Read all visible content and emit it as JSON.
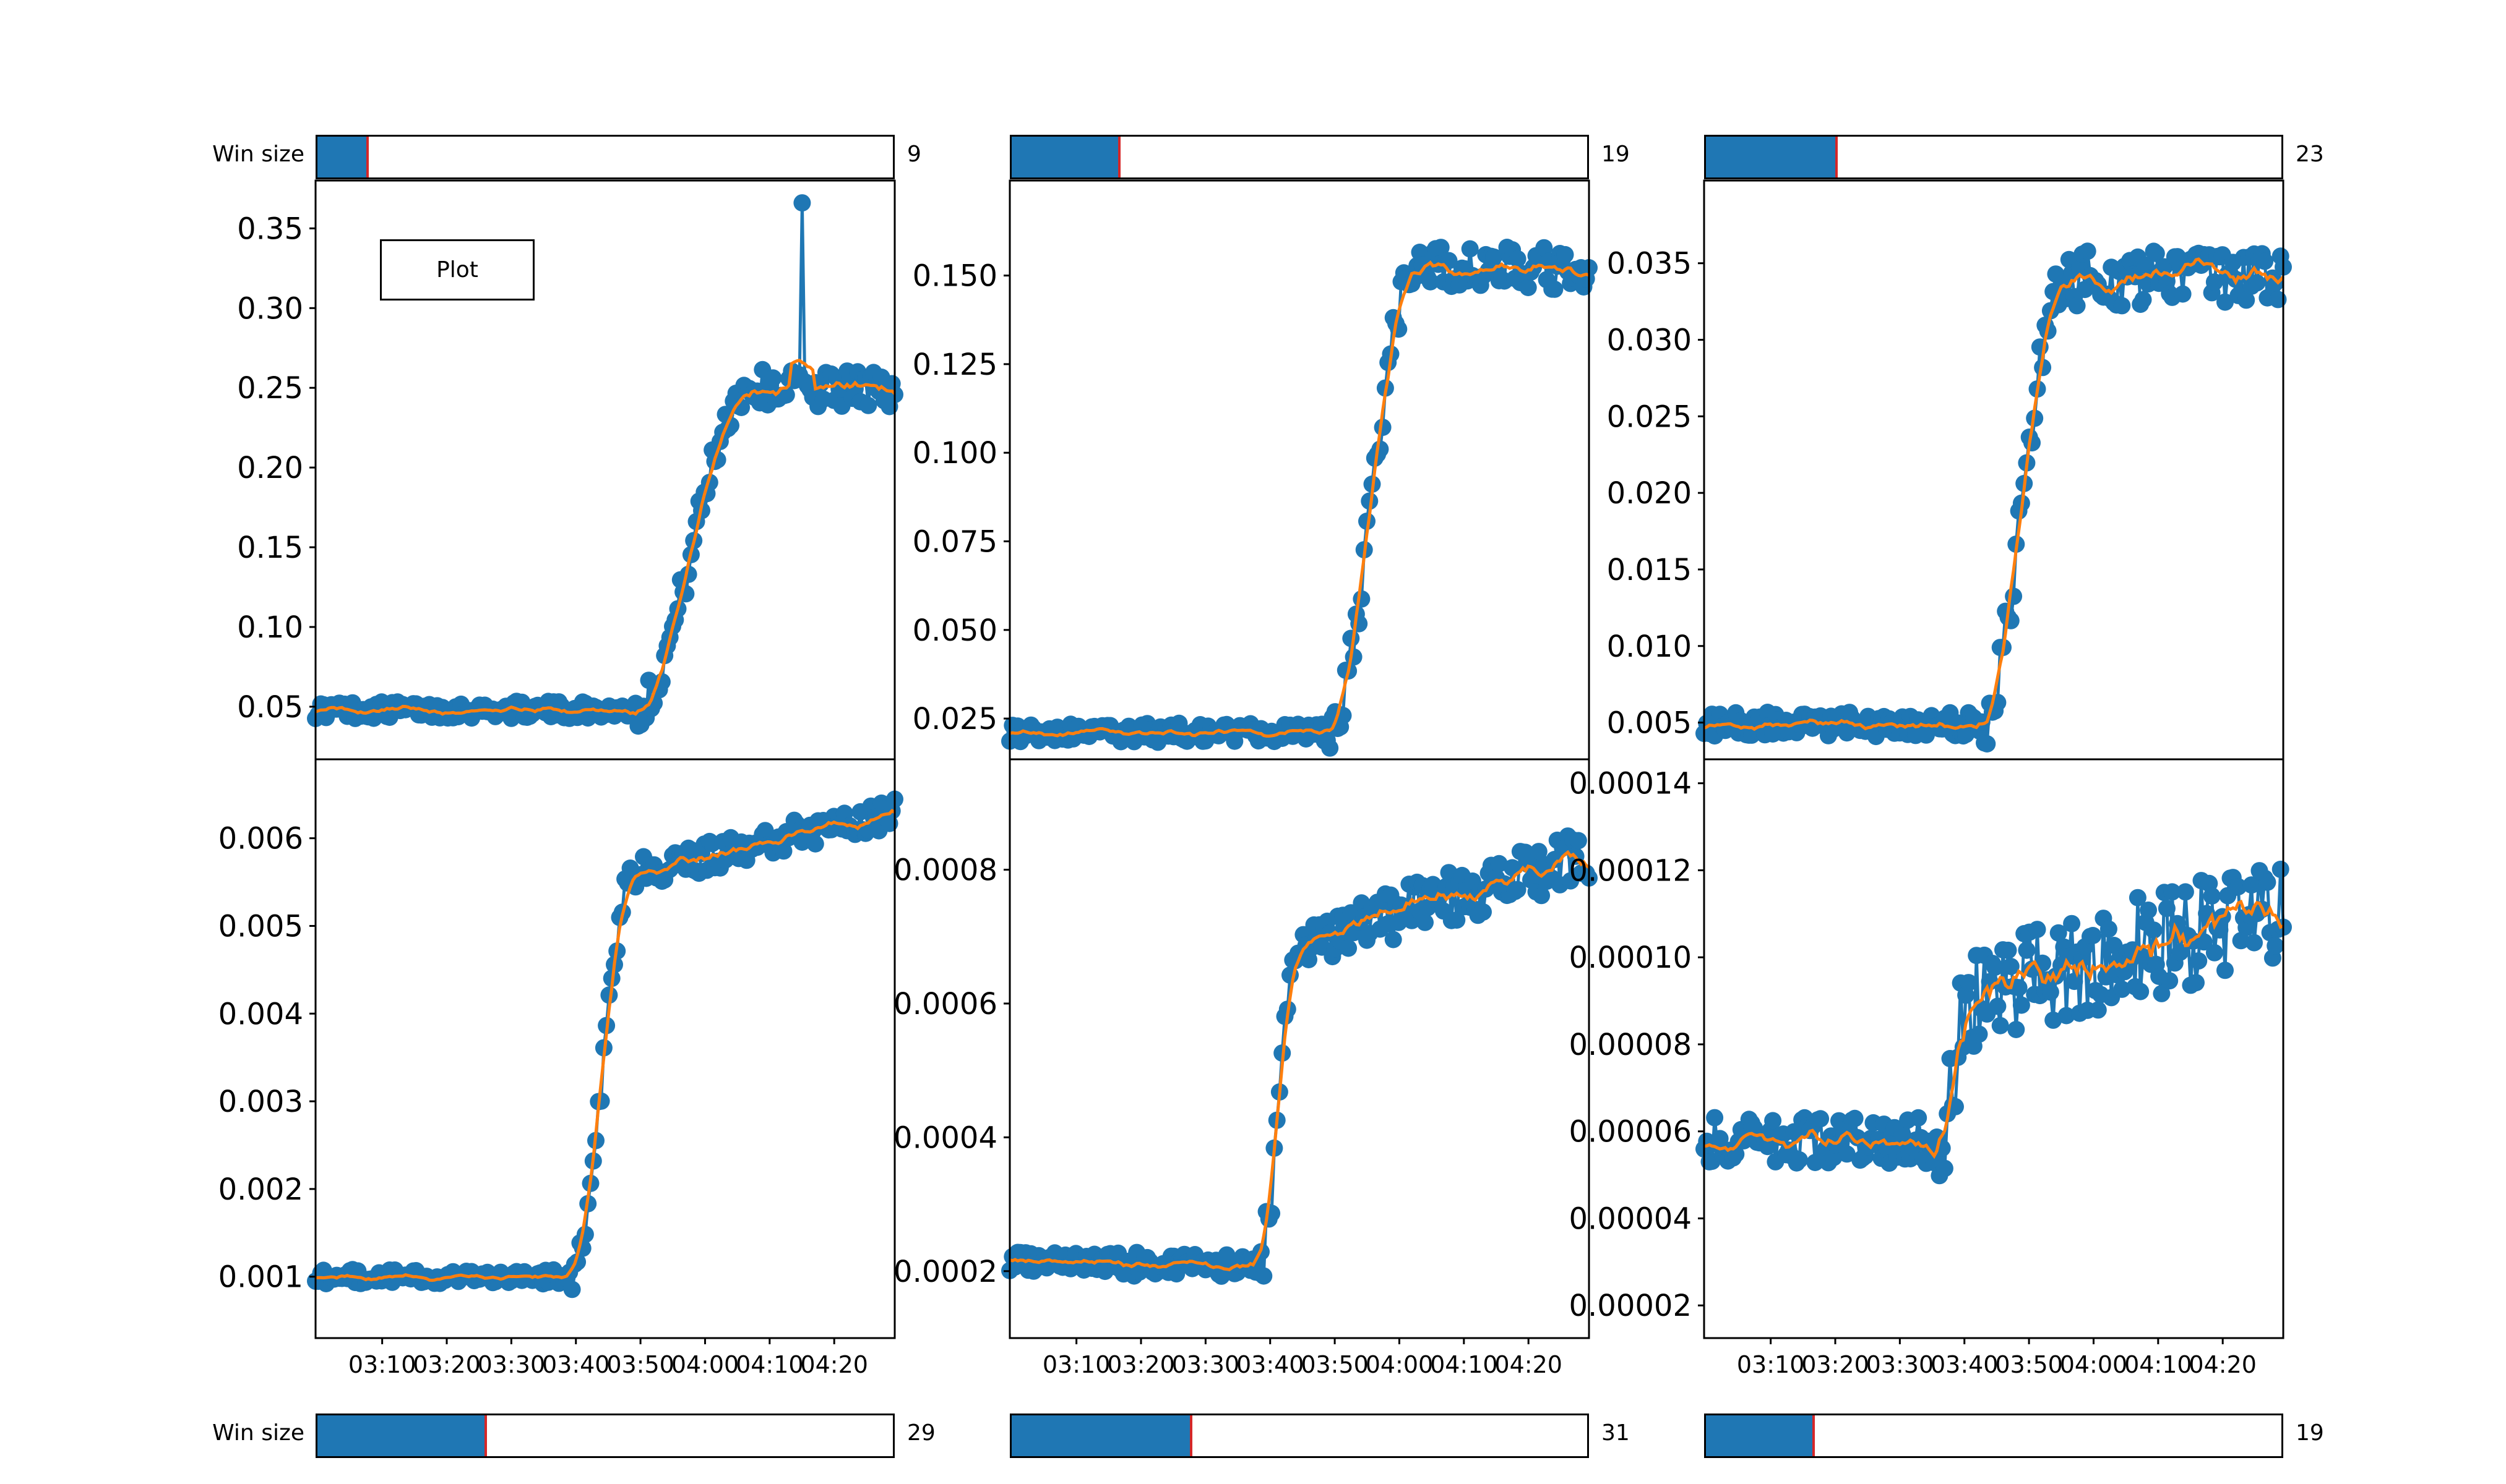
{
  "controls": {
    "top_row_label": "Win size",
    "bottom_row_label": "Win size",
    "plot_button_label": "Plot",
    "sliders": [
      {
        "value": "9",
        "fill_fraction": 0.085
      },
      {
        "value": "19",
        "fill_fraction": 0.185
      },
      {
        "value": "23",
        "fill_fraction": 0.225
      },
      {
        "value": "29",
        "fill_fraction": 0.29
      },
      {
        "value": "31",
        "fill_fraction": 0.31
      },
      {
        "value": "19",
        "fill_fraction": 0.185
      }
    ]
  },
  "colors": {
    "raw_series": "#1f77b4",
    "smoothed_series": "#ff7f0e",
    "slider_fill": "#1f77b4",
    "slider_handle": "#d62728"
  },
  "chart_data": [
    {
      "type": "line",
      "title": "",
      "xlabel": "",
      "ylabel": "",
      "x_ticks": [
        "03:10",
        "03:20",
        "03:30",
        "03:40",
        "03:50",
        "04:00",
        "04:10",
        "04:20"
      ],
      "y_ticks": [
        "0.05",
        "0.10",
        "0.15",
        "0.20",
        "0.25",
        "0.30",
        "0.35"
      ],
      "ylim": [
        0.017,
        0.38
      ],
      "curve": {
        "base": 0.048,
        "top": 0.25,
        "transition_start": 0.55,
        "transition_end": 0.75,
        "noise": 0.012,
        "spike": {
          "at": 0.84,
          "value": 0.366
        }
      },
      "series": [
        {
          "style": "markers+line"
        },
        {
          "style": "smoothed line"
        }
      ]
    },
    {
      "type": "line",
      "title": "",
      "xlabel": "",
      "ylabel": "",
      "x_ticks": [
        "03:10",
        "03:20",
        "03:30",
        "03:40",
        "03:50",
        "04:00",
        "04:10",
        "04:20"
      ],
      "y_ticks": [
        "0.025",
        "0.050",
        "0.075",
        "0.100",
        "0.125",
        "0.150"
      ],
      "ylim": [
        0.0135,
        0.1768
      ],
      "curve": {
        "base": 0.021,
        "top": 0.152,
        "transition_start": 0.55,
        "transition_end": 0.7,
        "noise": 0.006
      },
      "series": [
        {
          "style": "markers+line"
        },
        {
          "style": "smoothed line"
        }
      ]
    },
    {
      "type": "line",
      "title": "",
      "xlabel": "",
      "ylabel": "",
      "x_ticks": [
        "03:10",
        "03:20",
        "03:30",
        "03:40",
        "03:50",
        "04:00",
        "04:10",
        "04:20"
      ],
      "y_ticks": [
        "0.005",
        "0.010",
        "0.015",
        "0.020",
        "0.025",
        "0.030",
        "0.035"
      ],
      "ylim": [
        0.0026,
        0.0404
      ],
      "curve": {
        "base": 0.0049,
        "top": 0.034,
        "transition_start": 0.48,
        "transition_end": 0.62,
        "noise": 0.0018
      },
      "series": [
        {
          "style": "markers+line"
        },
        {
          "style": "smoothed line"
        }
      ]
    },
    {
      "type": "line",
      "title": "",
      "xlabel": "",
      "ylabel": "",
      "x_ticks": [
        "03:10",
        "03:20",
        "03:30",
        "03:40",
        "03:50",
        "04:00",
        "04:10",
        "04:20"
      ],
      "y_ticks": [
        "0.001",
        "0.002",
        "0.003",
        "0.004",
        "0.005",
        "0.006"
      ],
      "ylim": [
        0.0003,
        0.0069
      ],
      "curve": {
        "base": 0.001,
        "top": 0.0056,
        "transition_start": 0.44,
        "transition_end": 0.55,
        "noise": 0.00018,
        "end_value": 0.0063
      },
      "series": [
        {
          "style": "markers+line"
        },
        {
          "style": "smoothed line"
        }
      ]
    },
    {
      "type": "line",
      "title": "",
      "xlabel": "",
      "ylabel": "",
      "x_ticks": [
        "03:10",
        "03:20",
        "03:30",
        "03:40",
        "03:50",
        "04:00",
        "04:10",
        "04:20"
      ],
      "y_ticks": [
        "0.0002",
        "0.0004",
        "0.0006",
        "0.0008"
      ],
      "ylim": [
        0.0001,
        0.000965
      ],
      "curve": {
        "base": 0.00021,
        "top": 0.00069,
        "transition_start": 0.43,
        "transition_end": 0.5,
        "noise": 4e-05,
        "end_value": 0.00082
      },
      "series": [
        {
          "style": "markers+line"
        },
        {
          "style": "smoothed line"
        }
      ]
    },
    {
      "type": "line",
      "title": "",
      "xlabel": "",
      "ylabel": "",
      "x_ticks": [
        "03:10",
        "03:20",
        "03:30",
        "03:40",
        "03:50",
        "04:00",
        "04:10",
        "04:20"
      ],
      "y_ticks": [
        "0.00002",
        "0.00004",
        "0.00006",
        "0.00008",
        "0.00010",
        "0.00012",
        "0.00014"
      ],
      "ylim": [
        1.25e-05,
        0.0001455
      ],
      "curve": {
        "base": 5.8e-05,
        "top": 9e-05,
        "transition_start": 0.4,
        "transition_end": 0.46,
        "noise": 1.2e-05,
        "end_value": 0.000112
      },
      "series": [
        {
          "style": "markers+line"
        },
        {
          "style": "smoothed line"
        }
      ]
    }
  ]
}
